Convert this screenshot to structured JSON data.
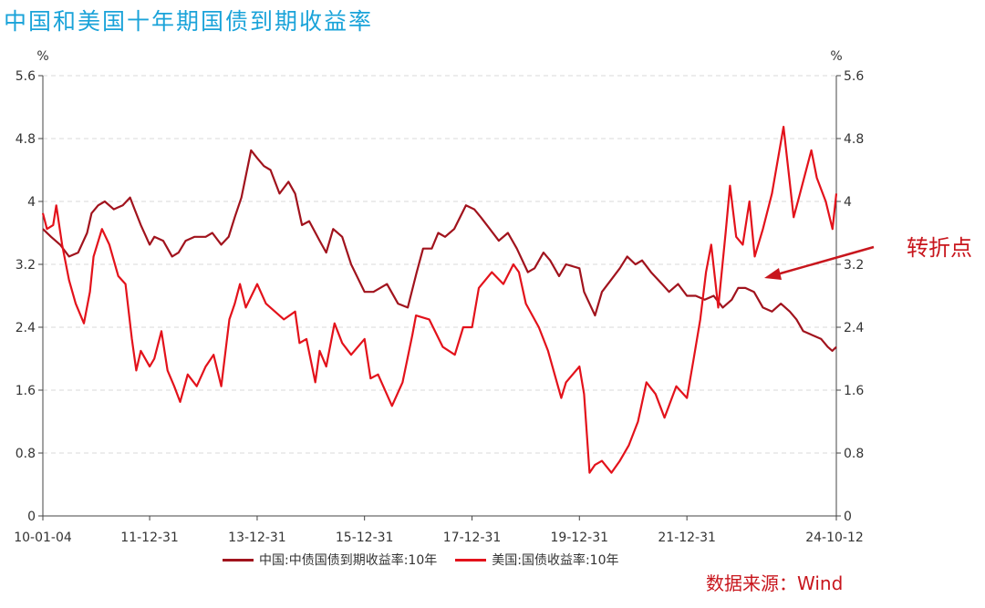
{
  "title": "中国和美国十年期国债到期收益率",
  "annotation": "转折点",
  "source": "数据来源：Wind",
  "colors": {
    "china": "#a1131d",
    "us": "#e3121b",
    "title": "#1aa3d9",
    "annotation": "#c8161d",
    "grid": "#d9d9d9"
  },
  "chart_data": {
    "type": "line",
    "y_unit_left": "%",
    "y_unit_right": "%",
    "ylim": [
      0,
      5.6
    ],
    "yticks": [
      "0",
      "0.8",
      "1.6",
      "2.4",
      "3.2",
      "4",
      "4.8",
      "5.6"
    ],
    "xlim": [
      "2010-01-04",
      "2024-10-12"
    ],
    "xticks": [
      {
        "label": "10-01-04",
        "date": "2010-01-04"
      },
      {
        "label": "11-12-31",
        "date": "2011-12-31"
      },
      {
        "label": "13-12-31",
        "date": "2013-12-31"
      },
      {
        "label": "15-12-31",
        "date": "2015-12-31"
      },
      {
        "label": "17-12-31",
        "date": "2017-12-31"
      },
      {
        "label": "19-12-31",
        "date": "2019-12-31"
      },
      {
        "label": "21-12-31",
        "date": "2021-12-31"
      },
      {
        "label": "24-10-12",
        "date": "2024-10-12"
      }
    ],
    "grid": true,
    "legend_position": "bottom",
    "series": [
      {
        "name": "中国:中债国债到期收益率:10年",
        "points": [
          [
            "2010-01-04",
            3.65
          ],
          [
            "2010-03-01",
            3.55
          ],
          [
            "2010-05-01",
            3.45
          ],
          [
            "2010-07-01",
            3.3
          ],
          [
            "2010-09-01",
            3.35
          ],
          [
            "2010-11-01",
            3.6
          ],
          [
            "2010-12-01",
            3.85
          ],
          [
            "2011-01-15",
            3.95
          ],
          [
            "2011-03-01",
            4.0
          ],
          [
            "2011-05-01",
            3.9
          ],
          [
            "2011-07-01",
            3.95
          ],
          [
            "2011-08-20",
            4.05
          ],
          [
            "2011-09-20",
            3.9
          ],
          [
            "2011-11-01",
            3.7
          ],
          [
            "2011-12-31",
            3.45
          ],
          [
            "2012-02-01",
            3.55
          ],
          [
            "2012-04-01",
            3.5
          ],
          [
            "2012-06-01",
            3.3
          ],
          [
            "2012-07-15",
            3.35
          ],
          [
            "2012-09-01",
            3.5
          ],
          [
            "2012-11-01",
            3.55
          ],
          [
            "2013-01-15",
            3.55
          ],
          [
            "2013-03-01",
            3.6
          ],
          [
            "2013-05-01",
            3.45
          ],
          [
            "2013-06-20",
            3.55
          ],
          [
            "2013-08-01",
            3.8
          ],
          [
            "2013-09-15",
            4.05
          ],
          [
            "2013-11-20",
            4.65
          ],
          [
            "2014-01-01",
            4.55
          ],
          [
            "2014-02-15",
            4.45
          ],
          [
            "2014-04-01",
            4.4
          ],
          [
            "2014-06-01",
            4.1
          ],
          [
            "2014-08-01",
            4.25
          ],
          [
            "2014-09-15",
            4.1
          ],
          [
            "2014-11-01",
            3.7
          ],
          [
            "2014-12-20",
            3.75
          ],
          [
            "2015-03-01",
            3.5
          ],
          [
            "2015-04-15",
            3.35
          ],
          [
            "2015-06-01",
            3.65
          ],
          [
            "2015-08-01",
            3.55
          ],
          [
            "2015-10-01",
            3.2
          ],
          [
            "2015-12-31",
            2.85
          ],
          [
            "2016-03-01",
            2.85
          ],
          [
            "2016-06-01",
            2.95
          ],
          [
            "2016-08-15",
            2.7
          ],
          [
            "2016-10-20",
            2.65
          ],
          [
            "2016-12-20",
            3.1
          ],
          [
            "2017-02-01",
            3.4
          ],
          [
            "2017-04-01",
            3.4
          ],
          [
            "2017-05-15",
            3.6
          ],
          [
            "2017-07-01",
            3.55
          ],
          [
            "2017-09-01",
            3.65
          ],
          [
            "2017-11-20",
            3.95
          ],
          [
            "2018-01-15",
            3.9
          ],
          [
            "2018-03-01",
            3.8
          ],
          [
            "2018-05-01",
            3.65
          ],
          [
            "2018-07-01",
            3.5
          ],
          [
            "2018-09-01",
            3.6
          ],
          [
            "2018-11-01",
            3.4
          ],
          [
            "2019-01-15",
            3.1
          ],
          [
            "2019-03-01",
            3.15
          ],
          [
            "2019-05-01",
            3.35
          ],
          [
            "2019-06-15",
            3.25
          ],
          [
            "2019-08-15",
            3.05
          ],
          [
            "2019-10-01",
            3.2
          ],
          [
            "2019-12-31",
            3.15
          ],
          [
            "2020-02-01",
            2.85
          ],
          [
            "2020-04-15",
            2.55
          ],
          [
            "2020-06-01",
            2.85
          ],
          [
            "2020-08-01",
            3.0
          ],
          [
            "2020-10-01",
            3.15
          ],
          [
            "2020-11-20",
            3.3
          ],
          [
            "2021-01-15",
            3.2
          ],
          [
            "2021-03-01",
            3.25
          ],
          [
            "2021-05-01",
            3.1
          ],
          [
            "2021-07-15",
            2.95
          ],
          [
            "2021-09-01",
            2.85
          ],
          [
            "2021-11-01",
            2.95
          ],
          [
            "2021-12-31",
            2.8
          ],
          [
            "2022-03-01",
            2.8
          ],
          [
            "2022-05-01",
            2.75
          ],
          [
            "2022-07-01",
            2.8
          ],
          [
            "2022-09-01",
            2.65
          ],
          [
            "2022-11-01",
            2.75
          ],
          [
            "2022-12-15",
            2.9
          ],
          [
            "2023-02-01",
            2.9
          ],
          [
            "2023-04-01",
            2.85
          ],
          [
            "2023-06-01",
            2.65
          ],
          [
            "2023-08-01",
            2.6
          ],
          [
            "2023-10-01",
            2.7
          ],
          [
            "2023-12-01",
            2.6
          ],
          [
            "2024-01-15",
            2.5
          ],
          [
            "2024-03-01",
            2.35
          ],
          [
            "2024-05-01",
            2.3
          ],
          [
            "2024-07-01",
            2.25
          ],
          [
            "2024-08-15",
            2.15
          ],
          [
            "2024-09-15",
            2.1
          ],
          [
            "2024-10-12",
            2.15
          ]
        ]
      },
      {
        "name": "美国:国债收益率:10年",
        "points": [
          [
            "2010-01-04",
            3.85
          ],
          [
            "2010-02-01",
            3.65
          ],
          [
            "2010-03-15",
            3.7
          ],
          [
            "2010-04-05",
            3.95
          ],
          [
            "2010-05-15",
            3.45
          ],
          [
            "2010-07-01",
            3.0
          ],
          [
            "2010-08-15",
            2.7
          ],
          [
            "2010-10-10",
            2.45
          ],
          [
            "2010-11-20",
            2.85
          ],
          [
            "2010-12-15",
            3.3
          ],
          [
            "2011-02-10",
            3.65
          ],
          [
            "2011-04-01",
            3.45
          ],
          [
            "2011-06-01",
            3.05
          ],
          [
            "2011-07-20",
            2.95
          ],
          [
            "2011-09-01",
            2.25
          ],
          [
            "2011-10-01",
            1.85
          ],
          [
            "2011-11-01",
            2.1
          ],
          [
            "2011-12-31",
            1.9
          ],
          [
            "2012-02-01",
            2.0
          ],
          [
            "2012-03-20",
            2.35
          ],
          [
            "2012-05-01",
            1.85
          ],
          [
            "2012-06-15",
            1.65
          ],
          [
            "2012-07-25",
            1.45
          ],
          [
            "2012-09-15",
            1.8
          ],
          [
            "2012-11-15",
            1.65
          ],
          [
            "2013-01-15",
            1.9
          ],
          [
            "2013-03-10",
            2.05
          ],
          [
            "2013-05-01",
            1.65
          ],
          [
            "2013-06-25",
            2.5
          ],
          [
            "2013-08-01",
            2.7
          ],
          [
            "2013-09-05",
            2.95
          ],
          [
            "2013-10-15",
            2.65
          ],
          [
            "2013-12-31",
            2.95
          ],
          [
            "2014-03-01",
            2.7
          ],
          [
            "2014-05-01",
            2.6
          ],
          [
            "2014-07-01",
            2.5
          ],
          [
            "2014-09-15",
            2.6
          ],
          [
            "2014-10-15",
            2.2
          ],
          [
            "2014-12-01",
            2.25
          ],
          [
            "2015-01-30",
            1.7
          ],
          [
            "2015-03-01",
            2.1
          ],
          [
            "2015-04-15",
            1.9
          ],
          [
            "2015-06-10",
            2.45
          ],
          [
            "2015-08-01",
            2.2
          ],
          [
            "2015-10-01",
            2.05
          ],
          [
            "2015-12-31",
            2.25
          ],
          [
            "2016-02-10",
            1.75
          ],
          [
            "2016-04-01",
            1.8
          ],
          [
            "2016-07-05",
            1.4
          ],
          [
            "2016-09-15",
            1.7
          ],
          [
            "2016-11-20",
            2.3
          ],
          [
            "2016-12-15",
            2.55
          ],
          [
            "2017-03-15",
            2.5
          ],
          [
            "2017-06-15",
            2.15
          ],
          [
            "2017-09-05",
            2.05
          ],
          [
            "2017-11-01",
            2.4
          ],
          [
            "2017-12-31",
            2.4
          ],
          [
            "2018-02-15",
            2.9
          ],
          [
            "2018-05-15",
            3.1
          ],
          [
            "2018-08-01",
            2.95
          ],
          [
            "2018-10-08",
            3.2
          ],
          [
            "2018-11-15",
            3.1
          ],
          [
            "2019-01-01",
            2.7
          ],
          [
            "2019-03-30",
            2.4
          ],
          [
            "2019-06-01",
            2.1
          ],
          [
            "2019-08-30",
            1.5
          ],
          [
            "2019-10-01",
            1.7
          ],
          [
            "2019-12-31",
            1.9
          ],
          [
            "2020-02-01",
            1.55
          ],
          [
            "2020-03-09",
            0.55
          ],
          [
            "2020-04-15",
            0.65
          ],
          [
            "2020-06-01",
            0.7
          ],
          [
            "2020-08-05",
            0.55
          ],
          [
            "2020-10-01",
            0.7
          ],
          [
            "2020-12-01",
            0.9
          ],
          [
            "2021-02-01",
            1.2
          ],
          [
            "2021-03-31",
            1.7
          ],
          [
            "2021-06-01",
            1.55
          ],
          [
            "2021-08-01",
            1.25
          ],
          [
            "2021-10-20",
            1.65
          ],
          [
            "2021-12-31",
            1.5
          ],
          [
            "2022-02-15",
            2.0
          ],
          [
            "2022-04-01",
            2.5
          ],
          [
            "2022-05-10",
            3.1
          ],
          [
            "2022-06-14",
            3.45
          ],
          [
            "2022-08-01",
            2.65
          ],
          [
            "2022-09-20",
            3.6
          ],
          [
            "2022-10-20",
            4.2
          ],
          [
            "2022-12-01",
            3.55
          ],
          [
            "2023-01-15",
            3.45
          ],
          [
            "2023-03-01",
            4.0
          ],
          [
            "2023-04-06",
            3.3
          ],
          [
            "2023-06-01",
            3.65
          ],
          [
            "2023-08-01",
            4.1
          ],
          [
            "2023-10-19",
            4.95
          ],
          [
            "2023-12-27",
            3.8
          ],
          [
            "2024-02-01",
            4.05
          ],
          [
            "2024-04-25",
            4.65
          ],
          [
            "2024-06-01",
            4.3
          ],
          [
            "2024-08-01",
            4.0
          ],
          [
            "2024-09-16",
            3.65
          ],
          [
            "2024-10-12",
            4.1
          ]
        ]
      }
    ]
  }
}
